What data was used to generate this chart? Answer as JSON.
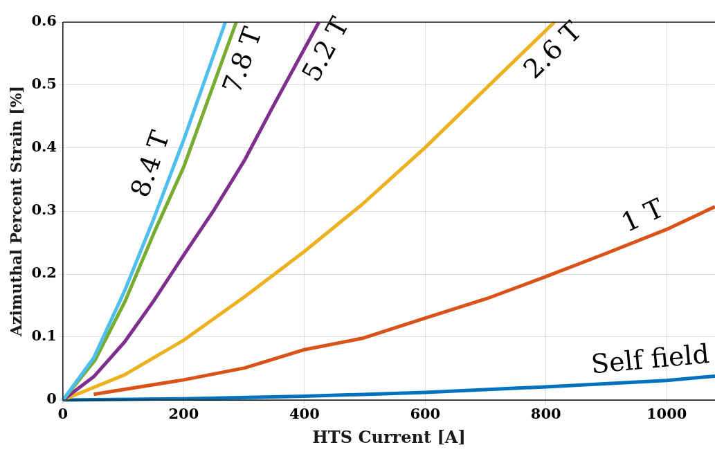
{
  "chart_data": {
    "type": "line",
    "xlabel": "HTS Current [A]",
    "ylabel": "Azimuthal Percent Strain [%]",
    "xlim": [
      0,
      1080
    ],
    "ylim": [
      0,
      0.6
    ],
    "xticks": [
      0,
      200,
      400,
      600,
      800,
      1000
    ],
    "yticks": [
      0,
      0.1,
      0.2,
      0.3,
      0.4,
      0.5,
      0.6
    ],
    "grid": true,
    "legend": false,
    "marker": "none",
    "line_style": "solid",
    "series": [
      {
        "name": "8.4 T",
        "color": "#4dbeee",
        "x": [
          0,
          51,
          102,
          150,
          200,
          269
        ],
        "values": [
          0,
          0.067,
          0.173,
          0.287,
          0.413,
          0.6
        ]
      },
      {
        "name": "7.8 T",
        "color": "#77ac30",
        "x": [
          0,
          53,
          103,
          152,
          200,
          287
        ],
        "values": [
          0,
          0.063,
          0.157,
          0.268,
          0.37,
          0.6
        ]
      },
      {
        "name": "5.2 T",
        "color": "#7e2f8e",
        "x": [
          0,
          51,
          102,
          150,
          200,
          251,
          301,
          349,
          424
        ],
        "values": [
          0,
          0.037,
          0.092,
          0.157,
          0.23,
          0.303,
          0.381,
          0.468,
          0.6
        ]
      },
      {
        "name": "2.6 T",
        "color": "#edb120",
        "x": [
          0,
          102,
          200,
          301,
          400,
          496,
          600,
          702,
          814
        ],
        "values": [
          0,
          0.04,
          0.095,
          0.164,
          0.236,
          0.311,
          0.401,
          0.496,
          0.6
        ]
      },
      {
        "name": "1 T",
        "color": "#d95319",
        "x": [
          51,
          200,
          301,
          400,
          496,
          600,
          702,
          800,
          900,
          1000,
          1080
        ],
        "values": [
          0.009,
          0.032,
          0.051,
          0.08,
          0.098,
          0.13,
          0.161,
          0.196,
          0.233,
          0.271,
          0.307
        ]
      },
      {
        "name": "Self field",
        "color": "#0072bd",
        "x": [
          0,
          200,
          400,
          600,
          800,
          1000,
          1080
        ],
        "values": [
          0,
          0.002,
          0.006,
          0.012,
          0.021,
          0.031,
          0.038
        ]
      }
    ]
  }
}
